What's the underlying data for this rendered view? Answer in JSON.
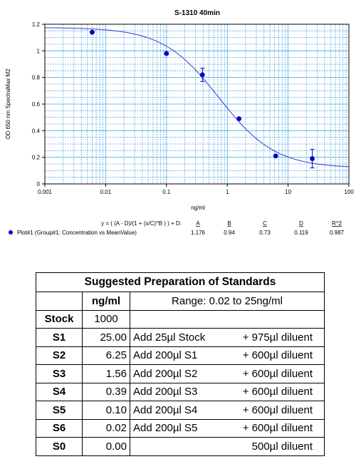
{
  "chart_data": {
    "type": "scatter",
    "title": "S-1310 40min",
    "xlabel": "ng/ml",
    "ylabel": "OD 650 nm SpectraMax M2",
    "x_scale": "log",
    "xlim": [
      0.001,
      100
    ],
    "ylim": [
      0,
      1.2
    ],
    "x_ticks": [
      "0.001",
      "0.01",
      "0.1",
      "1",
      "10",
      "100"
    ],
    "y_ticks": [
      "0",
      "0.2",
      "0.4",
      "0.6",
      "0.8",
      "1",
      "1.2"
    ],
    "grid": true,
    "series": [
      {
        "name": "Plot#1 (Group#1: Concentration vs MeanValue)",
        "x": [
          0.006,
          0.1,
          0.39,
          1.56,
          6.25,
          25
        ],
        "y": [
          1.14,
          0.98,
          0.82,
          0.49,
          0.21,
          0.19
        ],
        "err": [
          0,
          0,
          0.05,
          0,
          0,
          0.07
        ],
        "color": "#0000cc"
      }
    ],
    "fit": {
      "equation": "y = ( (A - D)/(1 + (x/C)^B ) ) + D:",
      "param_labels": [
        "A",
        "B",
        "C",
        "D",
        "R^2"
      ],
      "param_values": [
        "1.176",
        "0.94",
        "0.73",
        "0.119",
        "0.987"
      ],
      "A": 1.176,
      "B": 0.94,
      "C": 0.73,
      "D": 0.119,
      "color": "#3a3acc"
    }
  },
  "table": {
    "title": "Suggested Preparation of Standards",
    "header_unit": "ng/ml",
    "header_range": "Range: 0.02 to 25ng/ml",
    "stock": {
      "label": "Stock",
      "value": "1000"
    },
    "rows": [
      {
        "label": "S1",
        "value": "25.00",
        "prep": "Add  25µl Stock",
        "diluent": "+ 975µl diluent"
      },
      {
        "label": "S2",
        "value": "6.25",
        "prep": "Add 200µl S1",
        "diluent": "+ 600µl diluent"
      },
      {
        "label": "S3",
        "value": "1.56",
        "prep": "Add 200µl S2",
        "diluent": "+ 600µl diluent"
      },
      {
        "label": "S4",
        "value": "0.39",
        "prep": "Add 200µl S3",
        "diluent": "+ 600µl diluent"
      },
      {
        "label": "S5",
        "value": "0.10",
        "prep": "Add 200µl S4",
        "diluent": "+ 600µl diluent"
      },
      {
        "label": "S6",
        "value": "0.02",
        "prep": "Add 200µl S5",
        "diluent": "+ 600µl diluent"
      },
      {
        "label": "S0",
        "value": "0.00",
        "prep": "",
        "diluent": "500µl diluent"
      }
    ]
  }
}
